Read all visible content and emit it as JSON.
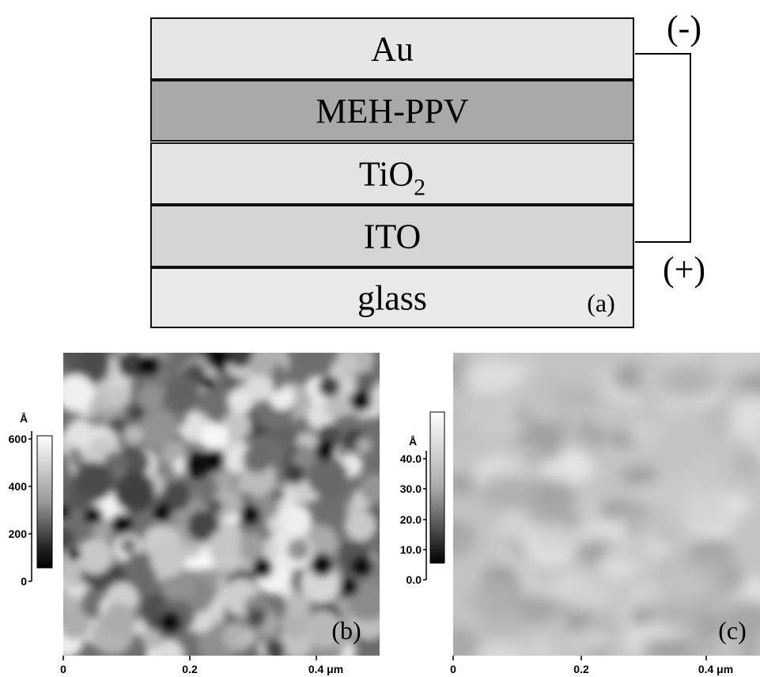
{
  "device": {
    "layers": [
      {
        "label": "Au"
      },
      {
        "label": "MEH-PPV"
      },
      {
        "label": "TiO",
        "subscript": "2"
      },
      {
        "label": "ITO"
      },
      {
        "label": "glass"
      }
    ],
    "negative": "(-)",
    "positive": "(+)",
    "panel_label": "(a)"
  },
  "afm_b": {
    "panel_label": "(b)",
    "colorbar_unit": "Å",
    "colorbar_ticks": [
      "600",
      "400",
      "200",
      "0"
    ],
    "x_ticks": [
      "0",
      "0.2",
      "0.4 μm"
    ]
  },
  "afm_c": {
    "panel_label": "(c)",
    "colorbar_unit": "Å",
    "colorbar_ticks": [
      "40.0",
      "30.0",
      "20.0",
      "10.0",
      "0.0"
    ],
    "x_ticks": [
      "0",
      "0.2",
      "0.4 μm"
    ]
  }
}
